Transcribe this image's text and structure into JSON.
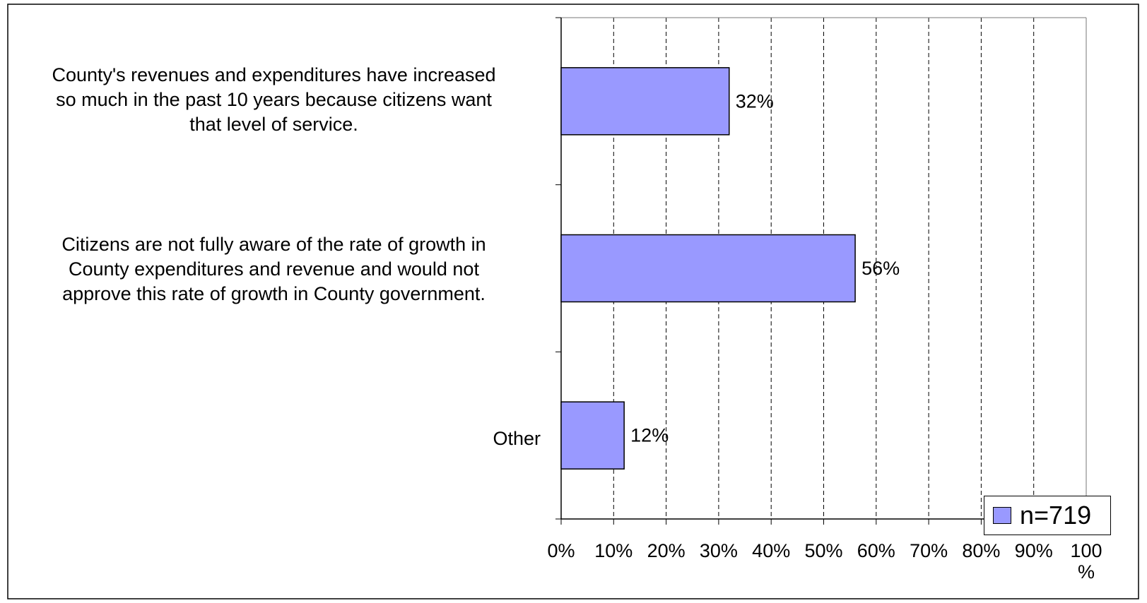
{
  "chart_data": {
    "type": "bar",
    "orientation": "horizontal",
    "categories": [
      "County's revenues and expenditures have increased so much in the past 10 years because citizens want that level of service.",
      "Citizens are not fully aware of  the rate of growth in County expenditures and revenue and would not approve this rate of growth in County government.",
      "Other"
    ],
    "series": [
      {
        "name": "n=719",
        "values": [
          32,
          56,
          12
        ],
        "color": "#9999ff"
      }
    ],
    "data_labels": [
      "32%",
      "56%",
      "12%"
    ],
    "x_ticks": [
      "0%",
      "10%",
      "20%",
      "30%",
      "40%",
      "50%",
      "60%",
      "70%",
      "80%",
      "90%",
      "100%"
    ],
    "xlim": [
      0,
      100
    ],
    "grid": "vertical dashed",
    "legend": {
      "label": "n=719",
      "placement": "bottom-right"
    }
  },
  "labels": {
    "cat0": [
      "County's revenues and expenditures have increased",
      "so much in the past 10 years because citizens want",
      "that level of service."
    ],
    "cat1": [
      "Citizens are not fully aware of  the rate of growth in",
      "County expenditures and revenue and would not",
      "approve this rate of growth in County government."
    ],
    "cat2": [
      "Other"
    ]
  }
}
